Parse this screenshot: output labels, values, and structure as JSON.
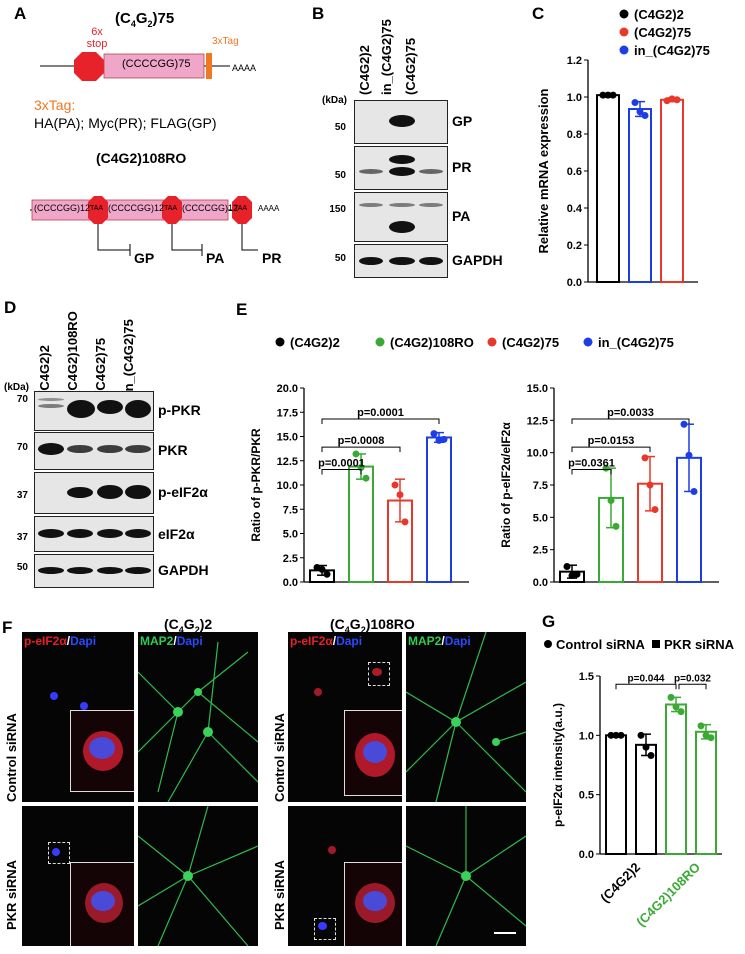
{
  "panels": {
    "A": "A",
    "B": "B",
    "C": "C",
    "D": "D",
    "E": "E",
    "F": "F",
    "G": "G"
  },
  "A": {
    "construct1_title": "(C4G2)75",
    "stop_label": "6x stop",
    "repeat_label": "(CCCCGG)75",
    "tag_label": "3xTag",
    "polyA": "AAAA",
    "tag_heading": "3xTag:",
    "tag_desc": "HA(PA); Myc(PR); FLAG(GP)",
    "construct2_title": "(C4G2)108RO",
    "repeat12": "(CCCCGG)12",
    "stop_codon": "TAA",
    "products": [
      "GP",
      "PA",
      "PR"
    ]
  },
  "B": {
    "lanes": [
      "(C4G2)2",
      "in_(C4G2)75",
      "(C4G2)75"
    ],
    "kda_label": "(kDa)",
    "rows": [
      {
        "protein": "GP",
        "mw": "50"
      },
      {
        "protein": "PR",
        "mw": "50"
      },
      {
        "protein": "PA",
        "mw": "150"
      },
      {
        "protein": "GAPDH",
        "mw": "50"
      }
    ]
  },
  "D": {
    "lanes": [
      "(C4G2)2",
      "(C4G2)108RO",
      "(C4G2)75",
      "in_(C4G2)75"
    ],
    "kda_label": "(kDa)",
    "rows": [
      {
        "protein": "p-PKR",
        "mw": "70"
      },
      {
        "protein": "PKR",
        "mw": "70"
      },
      {
        "protein": "p-eIF2α",
        "mw": "37"
      },
      {
        "protein": "eIF2α",
        "mw": "37"
      },
      {
        "protein": "GAPDH",
        "mw": "50"
      }
    ]
  },
  "F": {
    "group1": "(C4G2)2",
    "group2": "(C4G2)108RO",
    "row1": "Control siRNA",
    "row2": "PKR siRNA",
    "stain1": "p-eIF2α",
    "stain2": "MAP2",
    "dapi": "Dapi",
    "slash": "/"
  },
  "colors": {
    "black": "#000000",
    "green": "#3aaa35",
    "red": "#e8382c",
    "blue": "#1d3ee6"
  },
  "chart_data": [
    {
      "id": "C",
      "type": "bar",
      "ylabel": "Relative mRNA expression",
      "ylim": [
        0,
        1.2
      ],
      "yticks": [
        "0.0",
        "0.2",
        "0.4",
        "0.6",
        "0.8",
        "1.0",
        "1.2"
      ],
      "legend_position": "top-right",
      "series": [
        {
          "name": "(C4G2)2",
          "color": "#000000",
          "value": 1.01,
          "sd": 0.0,
          "points": [
            1.01,
            1.01,
            1.01
          ]
        },
        {
          "name": "(C4G2)75",
          "color": "#e8382c",
          "value": 0.985,
          "sd": 0.01,
          "points": [
            0.98,
            0.99,
            0.985
          ]
        },
        {
          "name": "in_(C4G2)75",
          "color": "#1d3ee6",
          "value": 0.935,
          "sd": 0.04,
          "points": [
            0.97,
            0.92,
            0.9
          ]
        }
      ],
      "bar_order": [
        "(C4G2)2",
        "in_(C4G2)75",
        "(C4G2)75"
      ]
    },
    {
      "id": "E1",
      "type": "bar",
      "ylabel": "Ratio of p-PKR/PKR",
      "ylim": [
        0,
        20
      ],
      "yticks": [
        "0.0",
        "2.5",
        "5.0",
        "7.5",
        "10.0",
        "12.5",
        "15.0",
        "17.5",
        "20.0"
      ],
      "legend": [
        "(C4G2)2",
        "(C4G2)108RO",
        "(C4G2)75",
        "in_(C4G2)75"
      ],
      "categories": [
        "(C4G2)2",
        "(C4G2)108RO",
        "(C4G2)75",
        "in_(C4G2)75"
      ],
      "colors": [
        "#000000",
        "#3aaa35",
        "#e8382c",
        "#1d3ee6"
      ],
      "values": [
        1.2,
        11.9,
        8.4,
        14.9
      ],
      "sd": [
        0.5,
        1.3,
        2.2,
        0.5
      ],
      "points": [
        [
          1.5,
          1.3,
          0.8
        ],
        [
          13.2,
          11.8,
          10.7
        ],
        [
          10.0,
          9.0,
          6.2
        ],
        [
          15.3,
          14.6,
          14.7
        ]
      ],
      "annotations": [
        {
          "text": "p=0.0001",
          "from": 0,
          "to": 1
        },
        {
          "text": "p=0.0008",
          "from": 0,
          "to": 2
        },
        {
          "text": "p=0.0001",
          "from": 0,
          "to": 3
        }
      ]
    },
    {
      "id": "E2",
      "type": "bar",
      "ylabel": "Ratio of p-eIF2α/eIF2α",
      "ylim": [
        0,
        15
      ],
      "yticks": [
        "0.0",
        "2.5",
        "5.0",
        "7.5",
        "10.0",
        "12.5",
        "15.0"
      ],
      "categories": [
        "(C4G2)2",
        "(C4G2)108RO",
        "(C4G2)75",
        "in_(C4G2)75"
      ],
      "colors": [
        "#000000",
        "#3aaa35",
        "#e8382c",
        "#1d3ee6"
      ],
      "values": [
        0.8,
        6.5,
        7.6,
        9.6
      ],
      "sd": [
        0.5,
        2.3,
        2.1,
        2.6
      ],
      "points": [
        [
          1.2,
          0.5,
          0.6
        ],
        [
          8.8,
          6.3,
          4.3
        ],
        [
          9.6,
          7.5,
          5.6
        ],
        [
          12.2,
          9.8,
          7.0
        ]
      ],
      "annotations": [
        {
          "text": "p=0.0361",
          "from": 0,
          "to": 1
        },
        {
          "text": "p=0.0153",
          "from": 0,
          "to": 2
        },
        {
          "text": "p=0.0033",
          "from": 0,
          "to": 3
        }
      ]
    },
    {
      "id": "G",
      "type": "bar",
      "ylabel": "p-eIF2α intensity(a.u.)",
      "ylim": [
        0,
        1.5
      ],
      "yticks": [
        "0.0",
        "0.5",
        "1.0",
        "1.5"
      ],
      "legend": [
        "Control siRNA",
        "PKR siRNA"
      ],
      "groups": [
        "(C4G2)2",
        "(C4G2)108RO"
      ],
      "group_colors": [
        "#000000",
        "#3aaa35"
      ],
      "bars": [
        {
          "group": 0,
          "treatment": "Control siRNA",
          "value": 1.0,
          "sd": 0.0,
          "points": [
            1.0,
            1.0,
            1.0
          ]
        },
        {
          "group": 0,
          "treatment": "PKR siRNA",
          "value": 0.92,
          "sd": 0.09,
          "points": [
            1.0,
            0.9,
            0.83
          ]
        },
        {
          "group": 1,
          "treatment": "Control siRNA",
          "value": 1.26,
          "sd": 0.06,
          "points": [
            1.32,
            1.24,
            1.2
          ]
        },
        {
          "group": 1,
          "treatment": "PKR siRNA",
          "value": 1.03,
          "sd": 0.06,
          "points": [
            1.08,
            1.0,
            0.98
          ]
        }
      ],
      "annotations": [
        {
          "text": "p=0.044",
          "from": 0,
          "to": 2
        },
        {
          "text": "p=0.032",
          "from": 2,
          "to": 3
        }
      ]
    }
  ]
}
